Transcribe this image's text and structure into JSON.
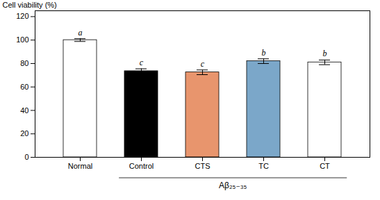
{
  "chart_data": {
    "type": "bar",
    "categories": [
      "Normal",
      "Control",
      "CTS",
      "TC",
      "CT"
    ],
    "values": [
      100.0,
      73.5,
      72.5,
      82.0,
      81.0
    ],
    "errors": [
      1.2,
      2.0,
      2.0,
      2.0,
      2.0
    ],
    "letters": [
      "a",
      "c",
      "c",
      "b",
      "b"
    ],
    "colors": [
      "white",
      "black",
      "#E8956D",
      "#7BA7C9",
      "white"
    ],
    "ylabel": "Cell viability (%)",
    "group_label": "Aβ₂₅₋₃₅",
    "group_categories": [
      "Control",
      "CTS",
      "TC",
      "CT"
    ],
    "ylim": [
      0,
      125
    ],
    "yticks": [
      0,
      20,
      40,
      60,
      80,
      100,
      120
    ],
    "grid": false
  }
}
